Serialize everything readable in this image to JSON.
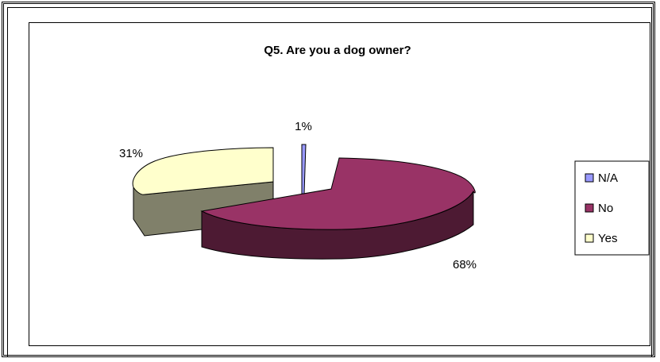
{
  "chart_data": {
    "type": "pie",
    "title": "Q5. Are you a dog owner?",
    "slices": [
      {
        "label": "N/A",
        "value": 1,
        "value_label": "1%",
        "color": "#9999ff",
        "side_color": "#5c5c99"
      },
      {
        "label": "No",
        "value": 68,
        "value_label": "68%",
        "color": "#993366",
        "side_color": "#4d1a33"
      },
      {
        "label": "Yes",
        "value": 31,
        "value_label": "31%",
        "color": "#ffffcc",
        "side_color": "#80806a"
      }
    ],
    "legend_position": "right",
    "style": "3d-exploded"
  }
}
